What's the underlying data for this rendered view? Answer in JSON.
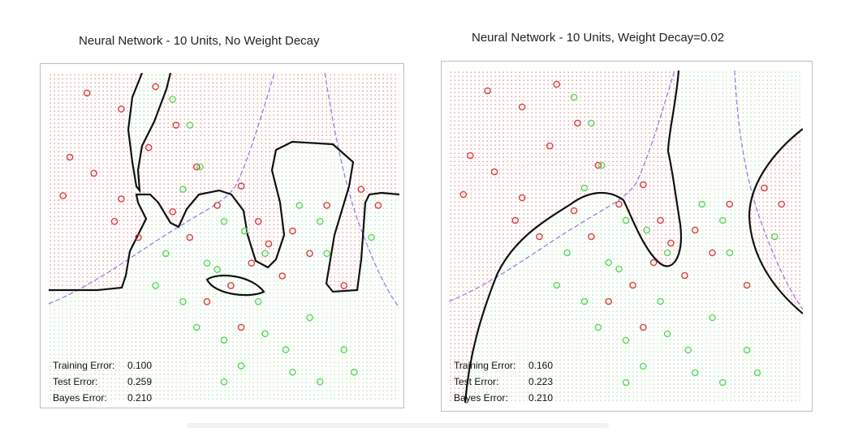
{
  "panels": [
    {
      "title": "Neural Network - 10 Units, No Weight Decay",
      "errors": [
        {
          "label": "Training Error:",
          "value": "0.100"
        },
        {
          "label": "Test Error:",
          "value": "0.259"
        },
        {
          "label": "Bayes Error:",
          "value": "0.210"
        }
      ]
    },
    {
      "title": "Neural Network - 10 Units, Weight Decay=0.02",
      "errors": [
        {
          "label": "Training Error:",
          "value": "0.160"
        },
        {
          "label": "Test Error:",
          "value": "0.223"
        },
        {
          "label": "Bayes Error:",
          "value": "0.210"
        }
      ]
    }
  ],
  "colors": {
    "class_red": "#e03c3c",
    "class_green": "#5cd65c",
    "red_region_dots": "#f08a8a",
    "green_region_dots": "#9ee39e",
    "decision_boundary": "#111111",
    "bayes_boundary": "#9b7fe0"
  },
  "chart_data": [
    {
      "type": "scatter",
      "title": "Neural Network - 10 Units, No Weight Decay",
      "xlabel": "",
      "ylabel": "",
      "grid": false,
      "series": [],
      "points_red": [
        [
          0.1,
          0.95
        ],
        [
          0.2,
          0.9
        ],
        [
          0.3,
          0.97
        ],
        [
          0.36,
          0.85
        ],
        [
          0.05,
          0.75
        ],
        [
          0.12,
          0.7
        ],
        [
          0.2,
          0.62
        ],
        [
          0.28,
          0.78
        ],
        [
          0.42,
          0.72
        ],
        [
          0.48,
          0.6
        ],
        [
          0.55,
          0.66
        ],
        [
          0.6,
          0.55
        ],
        [
          0.63,
          0.48
        ],
        [
          0.58,
          0.42
        ],
        [
          0.67,
          0.38
        ],
        [
          0.7,
          0.52
        ],
        [
          0.75,
          0.45
        ],
        [
          0.03,
          0.63
        ],
        [
          0.18,
          0.55
        ],
        [
          0.25,
          0.5
        ],
        [
          0.35,
          0.58
        ],
        [
          0.4,
          0.5
        ],
        [
          0.52,
          0.35
        ],
        [
          0.8,
          0.6
        ],
        [
          0.9,
          0.65
        ],
        [
          0.85,
          0.35
        ],
        [
          0.45,
          0.3
        ],
        [
          0.55,
          0.22
        ],
        [
          0.95,
          0.6
        ]
      ],
      "points_green": [
        [
          0.35,
          0.93
        ],
        [
          0.4,
          0.85
        ],
        [
          0.43,
          0.72
        ],
        [
          0.38,
          0.65
        ],
        [
          0.5,
          0.55
        ],
        [
          0.45,
          0.42
        ],
        [
          0.33,
          0.45
        ],
        [
          0.3,
          0.35
        ],
        [
          0.38,
          0.3
        ],
        [
          0.42,
          0.22
        ],
        [
          0.5,
          0.18
        ],
        [
          0.55,
          0.1
        ],
        [
          0.62,
          0.2
        ],
        [
          0.6,
          0.3
        ],
        [
          0.68,
          0.15
        ],
        [
          0.75,
          0.25
        ],
        [
          0.72,
          0.6
        ],
        [
          0.78,
          0.55
        ],
        [
          0.8,
          0.45
        ],
        [
          0.85,
          0.15
        ],
        [
          0.78,
          0.05
        ],
        [
          0.7,
          0.08
        ],
        [
          0.5,
          0.05
        ],
        [
          0.62,
          0.45
        ],
        [
          0.56,
          0.52
        ],
        [
          0.48,
          0.4
        ],
        [
          0.93,
          0.5
        ],
        [
          0.88,
          0.08
        ]
      ]
    },
    {
      "type": "scatter",
      "title": "Neural Network - 10 Units, Weight Decay=0.02",
      "xlabel": "",
      "ylabel": "",
      "grid": false,
      "series": [],
      "points_red": [
        [
          0.1,
          0.95
        ],
        [
          0.2,
          0.9
        ],
        [
          0.3,
          0.97
        ],
        [
          0.36,
          0.85
        ],
        [
          0.05,
          0.75
        ],
        [
          0.12,
          0.7
        ],
        [
          0.2,
          0.62
        ],
        [
          0.28,
          0.78
        ],
        [
          0.42,
          0.72
        ],
        [
          0.48,
          0.6
        ],
        [
          0.55,
          0.66
        ],
        [
          0.6,
          0.55
        ],
        [
          0.63,
          0.48
        ],
        [
          0.58,
          0.42
        ],
        [
          0.67,
          0.38
        ],
        [
          0.7,
          0.52
        ],
        [
          0.75,
          0.45
        ],
        [
          0.03,
          0.63
        ],
        [
          0.18,
          0.55
        ],
        [
          0.25,
          0.5
        ],
        [
          0.35,
          0.58
        ],
        [
          0.4,
          0.5
        ],
        [
          0.52,
          0.35
        ],
        [
          0.8,
          0.6
        ],
        [
          0.9,
          0.65
        ],
        [
          0.85,
          0.35
        ],
        [
          0.45,
          0.3
        ],
        [
          0.55,
          0.22
        ],
        [
          0.95,
          0.6
        ]
      ],
      "points_green": [
        [
          0.35,
          0.93
        ],
        [
          0.4,
          0.85
        ],
        [
          0.43,
          0.72
        ],
        [
          0.38,
          0.65
        ],
        [
          0.5,
          0.55
        ],
        [
          0.45,
          0.42
        ],
        [
          0.33,
          0.45
        ],
        [
          0.3,
          0.35
        ],
        [
          0.38,
          0.3
        ],
        [
          0.42,
          0.22
        ],
        [
          0.5,
          0.18
        ],
        [
          0.55,
          0.1
        ],
        [
          0.62,
          0.2
        ],
        [
          0.6,
          0.3
        ],
        [
          0.68,
          0.15
        ],
        [
          0.75,
          0.25
        ],
        [
          0.72,
          0.6
        ],
        [
          0.78,
          0.55
        ],
        [
          0.8,
          0.45
        ],
        [
          0.85,
          0.15
        ],
        [
          0.78,
          0.05
        ],
        [
          0.7,
          0.08
        ],
        [
          0.5,
          0.05
        ],
        [
          0.62,
          0.45
        ],
        [
          0.56,
          0.52
        ],
        [
          0.48,
          0.4
        ],
        [
          0.93,
          0.5
        ],
        [
          0.88,
          0.08
        ]
      ]
    }
  ]
}
